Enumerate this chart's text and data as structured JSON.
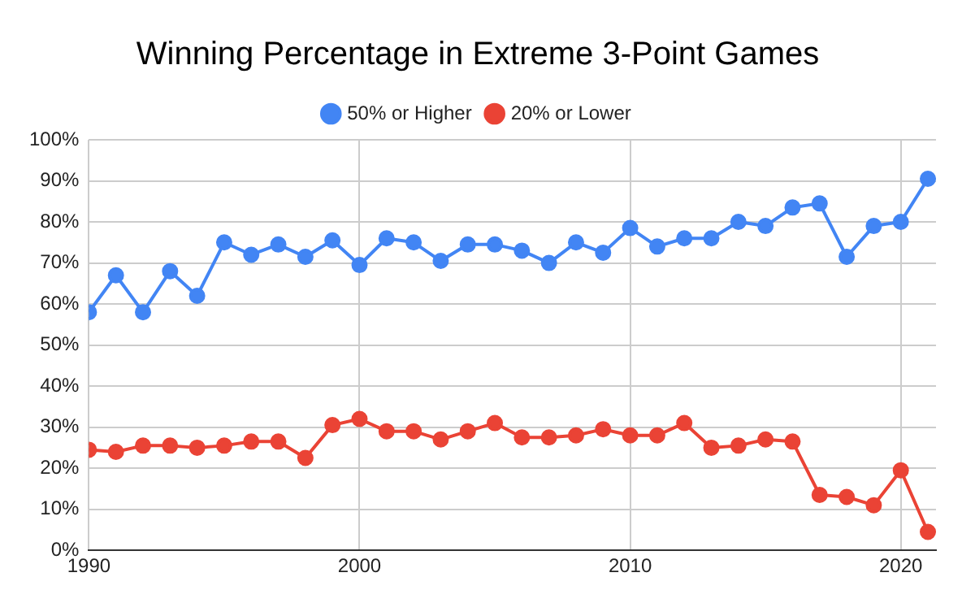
{
  "chart_data": {
    "type": "line",
    "title": "Winning Percentage in Extreme 3-Point Games",
    "x": [
      1990,
      1991,
      1992,
      1993,
      1994,
      1995,
      1996,
      1997,
      1998,
      1999,
      2000,
      2001,
      2002,
      2003,
      2004,
      2005,
      2006,
      2007,
      2008,
      2009,
      2010,
      2011,
      2012,
      2013,
      2014,
      2015,
      2016,
      2017,
      2018,
      2019,
      2020,
      2021
    ],
    "series": [
      {
        "name": "50% or Higher",
        "color": "#4285f4",
        "values": [
          58,
          67,
          58,
          68,
          62,
          75,
          72,
          74.5,
          71.5,
          75.5,
          69.5,
          76,
          75,
          70.5,
          74.5,
          74.5,
          73,
          70,
          75,
          72.5,
          78.5,
          74,
          76,
          76,
          80,
          79,
          83.5,
          84.5,
          71.5,
          79,
          80,
          90.5
        ]
      },
      {
        "name": "20% or Lower",
        "color": "#ea4335",
        "values": [
          24.5,
          24,
          25.5,
          25.5,
          25,
          25.5,
          26.5,
          26.5,
          22.5,
          30.5,
          32,
          29,
          29,
          27,
          29,
          31,
          27.5,
          27.5,
          28,
          29.5,
          28,
          28,
          31,
          25,
          25.5,
          27,
          26.5,
          13.5,
          13,
          11,
          19.5,
          4.5
        ]
      }
    ],
    "xlim": [
      1990,
      2021.3
    ],
    "xticks": [
      1990,
      2000,
      2010,
      2020
    ],
    "ylim": [
      0,
      100
    ],
    "yticks": [
      {
        "value": 0,
        "label": "0%"
      },
      {
        "value": 10,
        "label": "10%"
      },
      {
        "value": 20,
        "label": "20%"
      },
      {
        "value": 30,
        "label": "30%"
      },
      {
        "value": 40,
        "label": "40%"
      },
      {
        "value": 50,
        "label": "50%"
      },
      {
        "value": 60,
        "label": "60%"
      },
      {
        "value": 70,
        "label": "70%"
      },
      {
        "value": 80,
        "label": "80%"
      },
      {
        "value": 90,
        "label": "90%"
      },
      {
        "value": 100,
        "label": "100%"
      }
    ],
    "grid": true,
    "legend": "top",
    "marker": "circle",
    "line_style": "solid"
  }
}
